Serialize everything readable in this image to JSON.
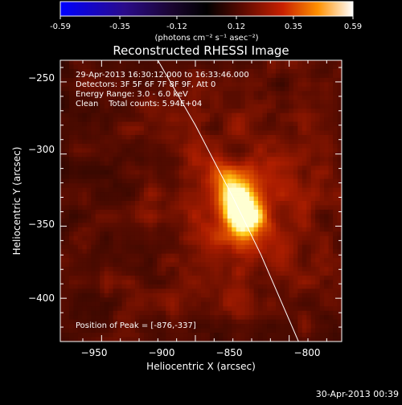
{
  "colorbar": {
    "ticks": [
      "-0.59",
      "-0.35",
      "-0.12",
      "0.12",
      "0.35",
      "0.59"
    ],
    "unit_label": "(photons cm⁻² s⁻¹ asec⁻²)"
  },
  "figure": {
    "title": "Reconstructed RHESSI Image",
    "xlabel": "Heliocentric X (arcsec)",
    "ylabel": "Heliocentric Y (arcsec)",
    "x_ticks": [
      "−950",
      "−900",
      "−850",
      "−800"
    ],
    "y_ticks": [
      "−250",
      "−300",
      "−350",
      "−400"
    ]
  },
  "annotations": {
    "time_range": "29-Apr-2013 16:30:12.000 to 16:33:46.000",
    "detectors": "Detectors: 3F 5F 6F 7F 8F 9F, Att 0",
    "energy_range": "Energy Range: 3.0 - 6.0 keV",
    "clean_counts": "Clean    Total counts: 5.94E+04",
    "peak_position": "Position of Peak = [-876,-337]"
  },
  "footer": {
    "timestamp": "30-Apr-2013 00:39"
  },
  "chart_data": {
    "type": "heatmap",
    "title": "Reconstructed RHESSI Image",
    "xlabel": "Heliocentric X (arcsec)",
    "ylabel": "Heliocentric Y (arcsec)",
    "xlim": [
      -972,
      -822
    ],
    "ylim": [
      -430,
      -235
    ],
    "x_ticks": [
      -950,
      -900,
      -850,
      -800
    ],
    "y_ticks": [
      -250,
      -300,
      -350,
      -400
    ],
    "colorbar_range": [
      -0.59,
      0.59
    ],
    "colorbar_ticks": [
      -0.59,
      -0.35,
      -0.12,
      0.12,
      0.35,
      0.59
    ],
    "colorbar_unit": "photons cm^-2 s^-1 asec^-2",
    "peak_position": [
      -876,
      -337
    ],
    "source": {
      "x": -876,
      "y": -337,
      "sigma_x": 7,
      "sigma_y": 15,
      "tilt_deg": -15
    },
    "limb_curve": [
      [
        -920,
        -235
      ],
      [
        -900,
        -280
      ],
      [
        -880,
        -330
      ],
      [
        -865,
        -370
      ],
      [
        -845,
        -430
      ]
    ],
    "grid": false
  }
}
